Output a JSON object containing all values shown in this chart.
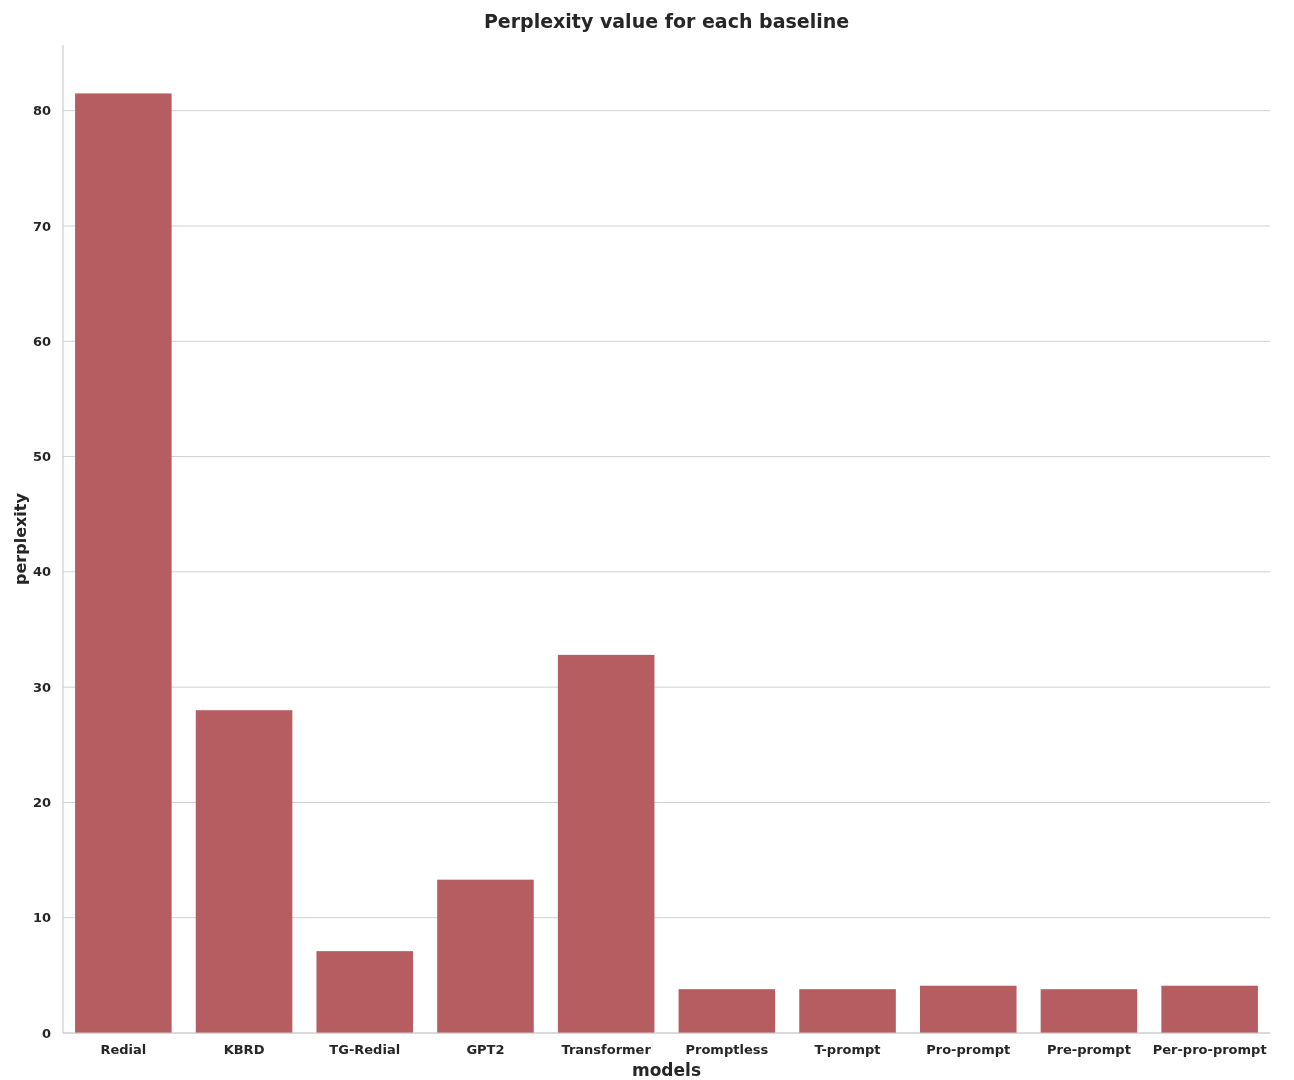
{
  "chart_data": {
    "type": "bar",
    "title": "Perplexity value for each baseline",
    "xlabel": "models",
    "ylabel": "perplexity",
    "categories": [
      "Redial",
      "KBRD",
      "TG-Redial",
      "GPT2",
      "Transformer",
      "Promptless",
      "T-prompt",
      "Pro-prompt",
      "Pre-prompt",
      "Per-pro-prompt"
    ],
    "values": [
      81.5,
      28.0,
      7.1,
      13.3,
      32.8,
      3.8,
      3.8,
      4.1,
      3.8,
      4.1
    ],
    "color": "#b55d60",
    "ylim": [
      0,
      85.7
    ],
    "yticks": [
      0,
      10,
      20,
      30,
      40,
      50,
      60,
      70,
      80
    ],
    "grid": "y"
  }
}
